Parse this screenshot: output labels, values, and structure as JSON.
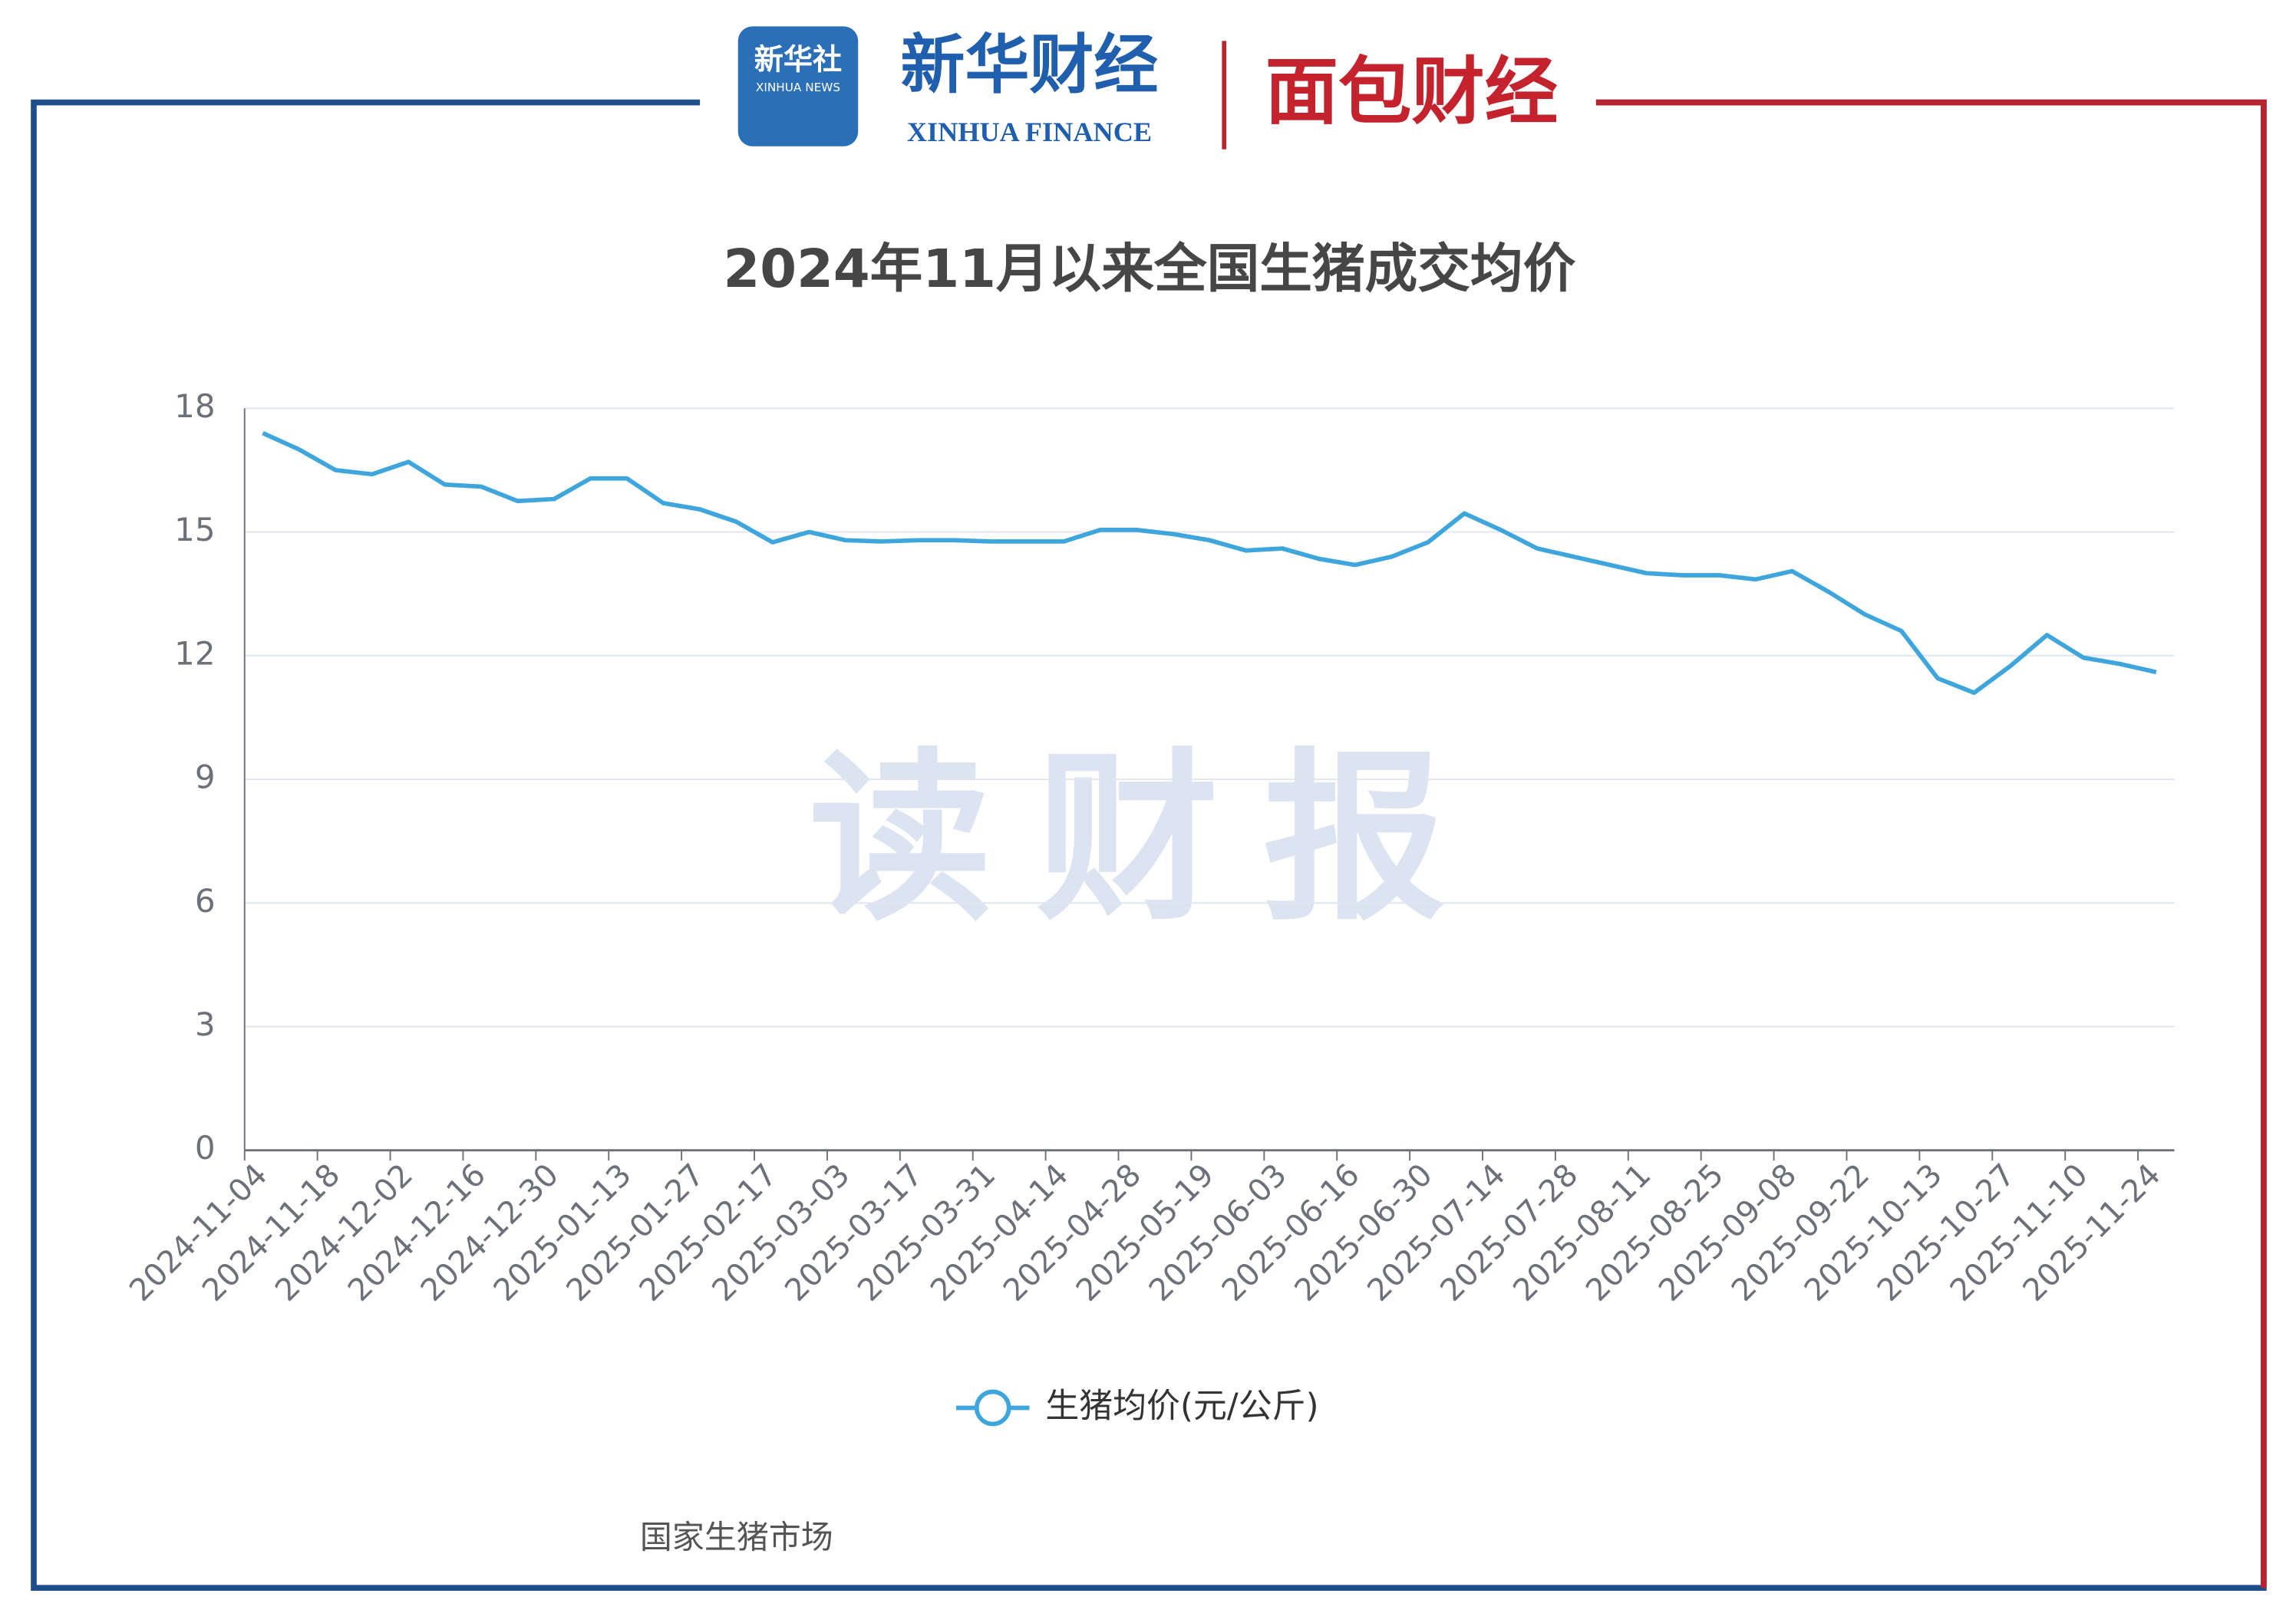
{
  "logos": {
    "xinhua_she": "新华社",
    "xinhua_news": "XINHUA NEWS",
    "xinhua_caijing": "新华财经",
    "xinhua_finance": "XINHUA FINANCE",
    "mianbao": "面包财经"
  },
  "watermark": "读财报",
  "source": "国家生猪市场",
  "chart_data": {
    "type": "line",
    "title": "2024年11月以来全国生猪成交均价",
    "categories": [
      "2024-11-04",
      null,
      "2024-11-18",
      null,
      "2024-12-02",
      null,
      "2024-12-16",
      null,
      "2024-12-30",
      null,
      "2025-01-13",
      null,
      "2025-01-27",
      null,
      "2025-02-17",
      null,
      "2025-03-03",
      null,
      "2025-03-17",
      null,
      "2025-03-31",
      null,
      "2025-04-14",
      null,
      "2025-04-28",
      null,
      "2025-05-19",
      null,
      "2025-06-03",
      null,
      "2025-06-16",
      null,
      "2025-06-30",
      null,
      "2025-07-14",
      null,
      "2025-07-28",
      null,
      "2025-08-11",
      null,
      "2025-08-25",
      null,
      "2025-09-08",
      null,
      "2025-09-22",
      null,
      "2025-10-13",
      null,
      "2025-10-27",
      null,
      "2025-11-10",
      null,
      "2025-11-24"
    ],
    "series": [
      {
        "name": "生猪均价(元/公斤)",
        "color": "#3ea6dd",
        "values": [
          17.4,
          17.0,
          16.5,
          16.4,
          16.7,
          16.15,
          16.1,
          15.75,
          15.8,
          16.3,
          16.3,
          15.7,
          15.55,
          15.25,
          14.75,
          15.0,
          14.8,
          14.77,
          14.8,
          14.8,
          14.77,
          14.77,
          14.77,
          15.05,
          15.05,
          14.95,
          14.8,
          14.55,
          14.6,
          14.35,
          14.2,
          14.4,
          14.75,
          15.45,
          15.05,
          14.6,
          14.4,
          14.2,
          14.0,
          13.95,
          13.95,
          13.85,
          14.05,
          13.55,
          13.0,
          12.6,
          11.45,
          11.1,
          11.75,
          12.5,
          11.95,
          11.8,
          11.6
        ]
      }
    ],
    "ylim": [
      0,
      18
    ],
    "yticks": [
      0,
      3,
      6,
      9,
      12,
      15,
      18
    ],
    "grid": true
  }
}
